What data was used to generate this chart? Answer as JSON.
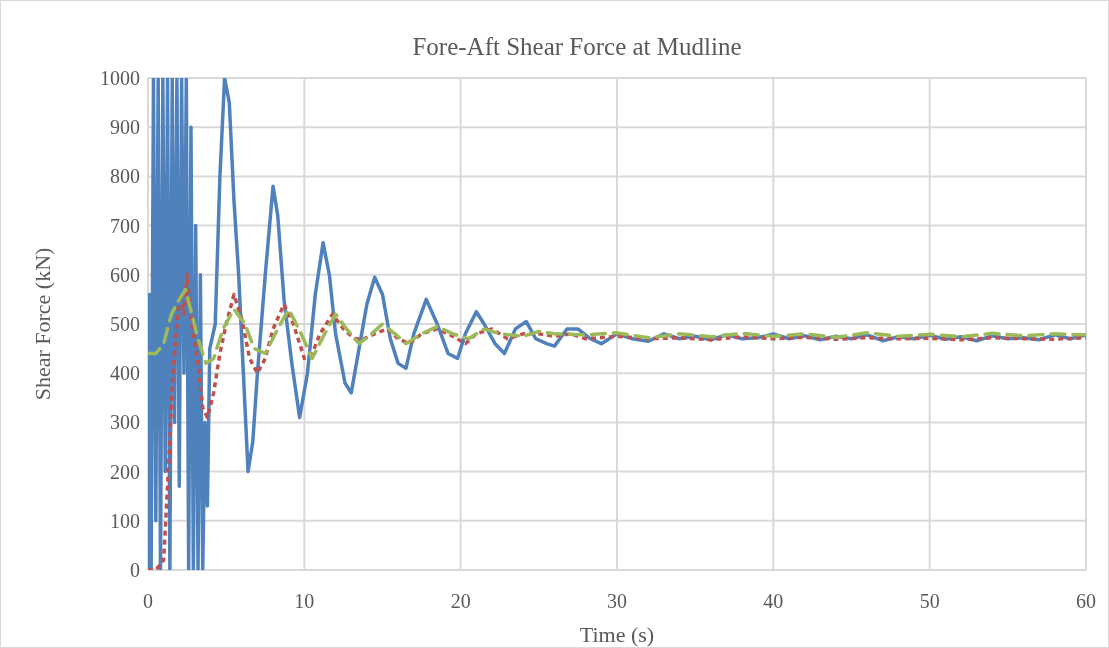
{
  "chart_data": {
    "type": "line",
    "title": "Fore-Aft Shear Force at Mudline",
    "xlabel": "Time (s)",
    "ylabel": "Shear Force (kN)",
    "xlim": [
      0,
      60
    ],
    "xticks": [
      0,
      10,
      20,
      30,
      40,
      50,
      60
    ],
    "ylim": [
      0,
      1000
    ],
    "yticks": [
      0,
      100,
      200,
      300,
      400,
      500,
      600,
      700,
      800,
      900,
      1000
    ],
    "grid": true,
    "series": [
      {
        "color": "#4f81bd",
        "line_style": "solid",
        "x": [
          0,
          0.1,
          0.2,
          0.35,
          0.5,
          0.65,
          0.8,
          0.95,
          1.1,
          1.25,
          1.4,
          1.55,
          1.7,
          1.85,
          2.0,
          2.15,
          2.3,
          2.45,
          2.6,
          2.75,
          2.9,
          3.05,
          3.2,
          3.35,
          3.5,
          3.65,
          3.8,
          3.95,
          4.3,
          4.6,
          4.9,
          5.2,
          5.5,
          5.8,
          6.1,
          6.4,
          6.7,
          7.0,
          7.5,
          8.0,
          8.3,
          8.7,
          9.2,
          9.7,
          10.2,
          10.7,
          11.2,
          11.6,
          12.0,
          12.6,
          13.0,
          13.5,
          14.0,
          14.5,
          15.0,
          15.5,
          16.0,
          16.5,
          17.0,
          17.8,
          18.5,
          19.2,
          19.8,
          20.3,
          21.0,
          21.5,
          22.2,
          22.8,
          23.5,
          24.2,
          24.8,
          25.5,
          26.0,
          26.8,
          27.5,
          28.3,
          29,
          30,
          31,
          32,
          33,
          34,
          35,
          36,
          37,
          38,
          39,
          40,
          41,
          42,
          43,
          44,
          45,
          46,
          47,
          48,
          49,
          50,
          51,
          52,
          53,
          54,
          55,
          56,
          57,
          58,
          59,
          60
        ],
        "values": [
          0,
          560,
          0,
          1000,
          100,
          1000,
          0,
          1000,
          200,
          1000,
          0,
          1000,
          300,
          1000,
          170,
          1000,
          400,
          1000,
          0,
          900,
          0,
          700,
          0,
          600,
          0,
          300,
          130,
          450,
          500,
          800,
          1000,
          950,
          750,
          600,
          400,
          200,
          260,
          400,
          600,
          780,
          720,
          550,
          420,
          310,
          400,
          560,
          665,
          600,
          480,
          380,
          360,
          450,
          540,
          595,
          560,
          470,
          420,
          410,
          480,
          550,
          500,
          440,
          430,
          480,
          525,
          500,
          460,
          440,
          490,
          505,
          470,
          460,
          455,
          490,
          490,
          470,
          460,
          480,
          470,
          465,
          480,
          470,
          475,
          468,
          478,
          470,
          472,
          480,
          470,
          476,
          468,
          475,
          470,
          478,
          466,
          474,
          470,
          477,
          469,
          474,
          466,
          476,
          470,
          472,
          468,
          478,
          470,
          478
        ]
      },
      {
        "color": "#c0504d",
        "line_style": "dotted",
        "x": [
          0,
          0.5,
          1.0,
          1.3,
          1.6,
          2.0,
          2.3,
          2.5,
          2.8,
          3.2,
          3.5,
          3.8,
          4.2,
          4.6,
          5.0,
          5.5,
          6.0,
          6.5,
          7.0,
          7.5,
          8.0,
          8.7,
          9.3,
          10,
          10.5,
          11,
          11.8,
          12.5,
          13.2,
          13.8,
          14.5,
          15.3,
          16,
          16.7,
          17.5,
          18.5,
          19.5,
          20.3,
          21,
          22,
          23,
          24,
          25,
          26,
          27,
          28,
          30,
          32,
          34,
          36,
          38,
          40,
          42,
          44,
          46,
          48,
          50,
          52,
          54,
          56,
          58,
          60
        ],
        "values": [
          0,
          0,
          20,
          200,
          400,
          560,
          520,
          600,
          500,
          420,
          330,
          310,
          360,
          440,
          500,
          560,
          510,
          430,
          400,
          430,
          490,
          540,
          500,
          430,
          440,
          480,
          520,
          490,
          470,
          470,
          480,
          490,
          470,
          460,
          480,
          490,
          475,
          460,
          480,
          490,
          470,
          480,
          480,
          475,
          480,
          470,
          475,
          470,
          472,
          468,
          474,
          470,
          473,
          469,
          472,
          470,
          471,
          468,
          472,
          470,
          469,
          472
        ]
      },
      {
        "color": "#9bbb59",
        "line_style": "dashed",
        "x": [
          0,
          0.5,
          1.0,
          1.5,
          2.0,
          2.4,
          2.8,
          3.2,
          3.7,
          4.2,
          4.8,
          5.5,
          6.2,
          6.8,
          7.5,
          8.3,
          9,
          9.8,
          10.5,
          11.3,
          12,
          12.7,
          13.5,
          14.3,
          15,
          15.8,
          16.5,
          17.5,
          18.5,
          19.5,
          20.5,
          21.5,
          22.5,
          24,
          25,
          26,
          28,
          30,
          32,
          34,
          36,
          38,
          40,
          42,
          44,
          46,
          48,
          50,
          52,
          54,
          56,
          58,
          60
        ],
        "values": [
          440,
          440,
          460,
          520,
          550,
          570,
          520,
          470,
          420,
          430,
          490,
          530,
          500,
          450,
          440,
          490,
          530,
          480,
          430,
          480,
          520,
          490,
          460,
          480,
          500,
          480,
          460,
          480,
          495,
          480,
          470,
          490,
          480,
          475,
          485,
          480,
          478,
          482,
          472,
          480,
          474,
          481,
          475,
          480,
          473,
          482,
          475,
          479,
          474,
          481,
          476,
          480,
          478
        ]
      }
    ]
  }
}
